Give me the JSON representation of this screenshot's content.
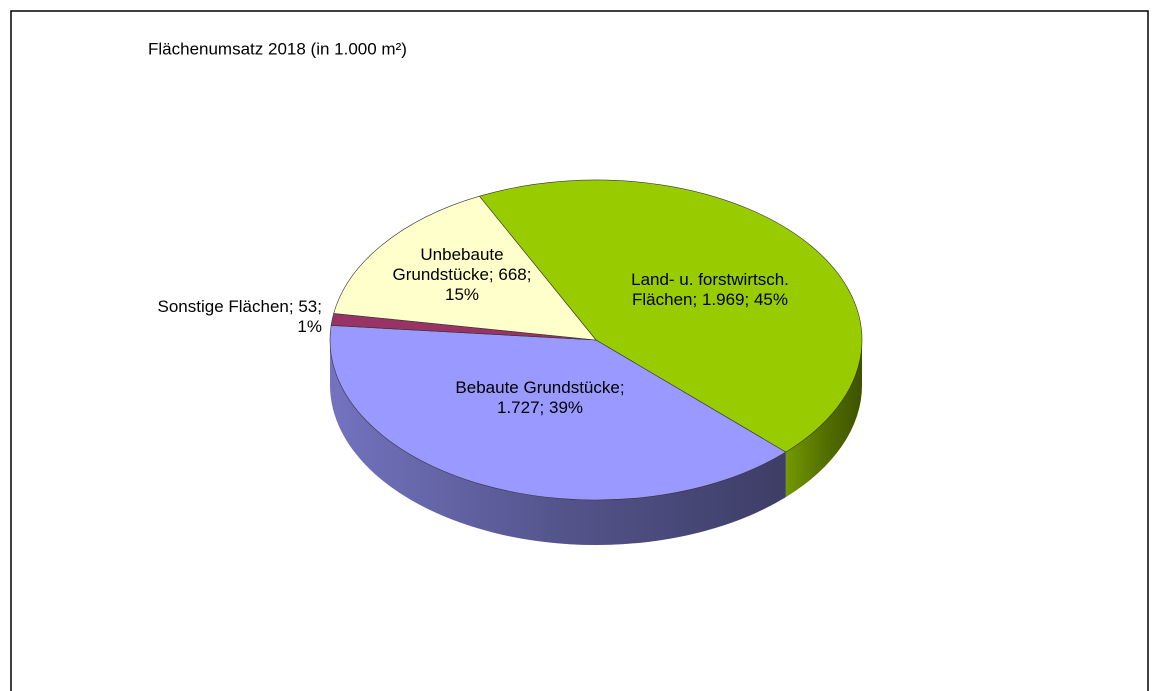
{
  "chart_data": {
    "type": "pie3d",
    "title": "Flächenumsatz 2018 (in 1.000 m²)",
    "categories": [
      "Land- u. forstwirtsch. Flächen",
      "Bebaute Grundstücke",
      "Sonstige Flächen",
      "Unbebaute Grundstücke"
    ],
    "values": [
      1969,
      1727,
      53,
      668
    ],
    "value_labels": [
      "1.969",
      "1.727",
      "53",
      "668"
    ],
    "percentages": [
      45,
      39,
      1,
      15
    ],
    "percentage_labels": [
      "45%",
      "39%",
      "1%",
      "15%"
    ],
    "label_separator": "; ",
    "colors": [
      "#99cc00",
      "#9999ff",
      "#993366",
      "#ffffcc"
    ]
  }
}
